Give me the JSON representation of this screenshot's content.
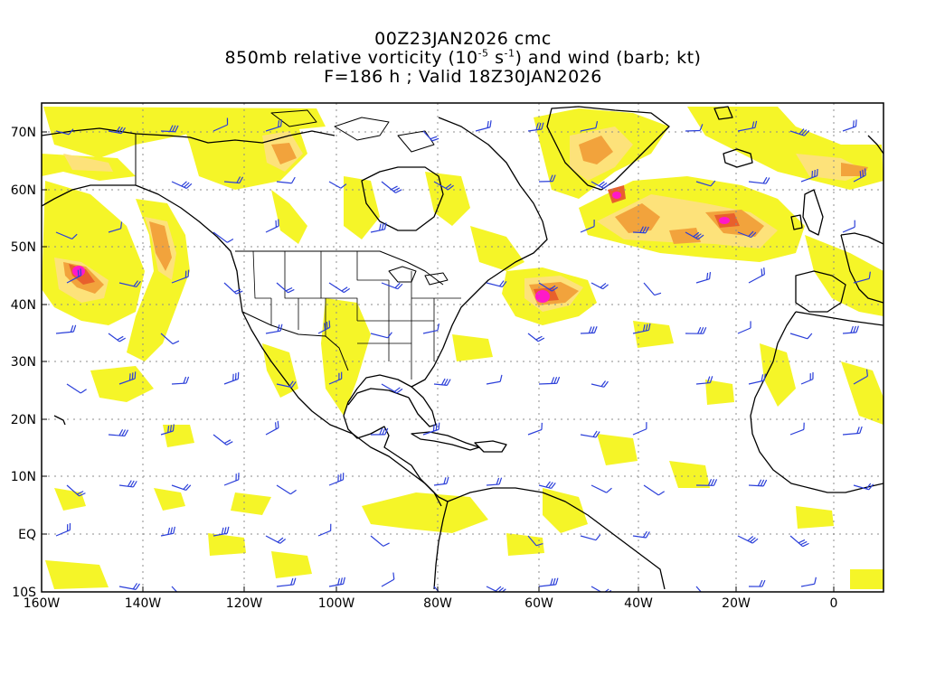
{
  "title": {
    "line1": "00Z23JAN2026 cmc",
    "line2_pre": "850mb relative vorticity (10",
    "line2_exp1": "-5",
    "line2_mid": " s",
    "line2_exp2": "-1",
    "line2_post": ") and wind (barb; kt)",
    "line3": "F=186 h ; Valid 18Z30JAN2026"
  },
  "axes": {
    "x_labels": [
      "160W",
      "140W",
      "120W",
      "100W",
      "80W",
      "60W",
      "40W",
      "20W",
      "0"
    ],
    "y_labels": [
      "70N",
      "60N",
      "50N",
      "40N",
      "30N",
      "20N",
      "10N",
      "EQ",
      "10S"
    ]
  },
  "colors": {
    "weak": "#f5f528",
    "moderate": "#fde27a",
    "strong": "#f2a33c",
    "very_strong": "#e8602c",
    "extreme": "#ff19c8",
    "barb": "#2b3fd9",
    "coast": "#000000",
    "grid": "#8c8c8c"
  }
}
